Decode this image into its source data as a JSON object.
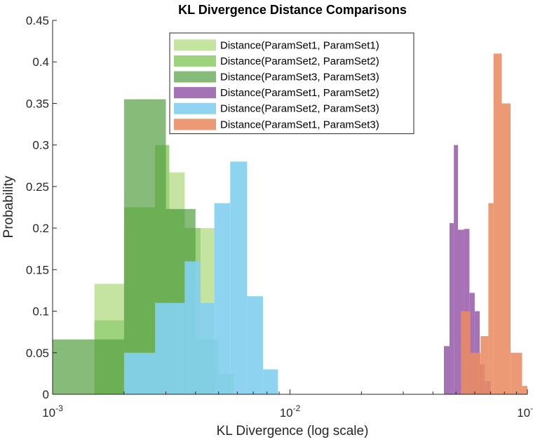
{
  "chart_data": {
    "type": "bar",
    "subtype": "overlaid-histogram",
    "title": "KL Divergence Distance Comparisons",
    "xlabel": "KL Divergence (log scale)",
    "ylabel": "Probability",
    "xscale": "log",
    "xlim": [
      0.001,
      0.1
    ],
    "ylim": [
      0,
      0.45
    ],
    "xticks": [
      {
        "value": 0.001,
        "base": "10",
        "exp": "-3"
      },
      {
        "value": 0.01,
        "base": "10",
        "exp": "-2"
      },
      {
        "value": 0.1,
        "base": "10",
        "exp": "-1"
      }
    ],
    "yticks": [
      "0",
      "0.05",
      "0.1",
      "0.15",
      "0.2",
      "0.25",
      "0.3",
      "0.35",
      "0.4",
      "0.45"
    ],
    "grid": false,
    "legend_position": "top-center",
    "series": [
      {
        "name": "Distance(ParamSet1, ParamSet1)",
        "color": "#c5e3a1",
        "opacity": 1.0,
        "bins": [
          {
            "x0": 0.0015,
            "x1": 0.002,
            "y": 0.133
          },
          {
            "x0": 0.002,
            "x1": 0.0027,
            "y": 0.2
          },
          {
            "x0": 0.0027,
            "x1": 0.0036,
            "y": 0.267
          },
          {
            "x0": 0.0036,
            "x1": 0.0048,
            "y": 0.2
          }
        ]
      },
      {
        "name": "Distance(ParamSet2, ParamSet2)",
        "color": "#9dd37c",
        "opacity": 1.0,
        "bins": [
          {
            "x0": 0.0015,
            "x1": 0.002,
            "y": 0.089
          },
          {
            "x0": 0.002,
            "x1": 0.0027,
            "y": 0.225
          },
          {
            "x0": 0.0027,
            "x1": 0.0031,
            "y": 0.3
          },
          {
            "x0": 0.0031,
            "x1": 0.0036,
            "y": 0.222
          },
          {
            "x0": 0.0036,
            "x1": 0.0042,
            "y": 0.2
          },
          {
            "x0": 0.0042,
            "x1": 0.0048,
            "y": 0.056
          }
        ]
      },
      {
        "name": "Distance(ParamSet3, ParamSet3)",
        "color": "#59a146",
        "opacity": 0.72,
        "bins": [
          {
            "x0": 0.001,
            "x1": 0.0015,
            "y": 0.066
          },
          {
            "x0": 0.0015,
            "x1": 0.002,
            "y": 0.066
          },
          {
            "x0": 0.002,
            "x1": 0.003,
            "y": 0.355
          },
          {
            "x0": 0.003,
            "x1": 0.004,
            "y": 0.223
          },
          {
            "x0": 0.004,
            "x1": 0.005,
            "y": 0.066
          },
          {
            "x0": 0.005,
            "x1": 0.0058,
            "y": 0.024
          }
        ]
      },
      {
        "name": "Distance(ParamSet1, ParamSet2)",
        "color": "#a572b6",
        "opacity": 1.0,
        "bins": [
          {
            "x0": 0.0445,
            "x1": 0.047,
            "y": 0.058
          },
          {
            "x0": 0.047,
            "x1": 0.049,
            "y": 0.206
          },
          {
            "x0": 0.049,
            "x1": 0.051,
            "y": 0.3
          },
          {
            "x0": 0.051,
            "x1": 0.054,
            "y": 0.198
          },
          {
            "x0": 0.054,
            "x1": 0.057,
            "y": 0.199
          },
          {
            "x0": 0.057,
            "x1": 0.06,
            "y": 0.122
          },
          {
            "x0": 0.06,
            "x1": 0.063,
            "y": 0.1
          },
          {
            "x0": 0.063,
            "x1": 0.066,
            "y": 0.036
          },
          {
            "x0": 0.066,
            "x1": 0.07,
            "y": 0.016
          }
        ]
      },
      {
        "name": "Distance(ParamSet2, ParamSet3)",
        "color": "#84d0f0",
        "opacity": 0.92,
        "bins": [
          {
            "x0": 0.002,
            "x1": 0.0027,
            "y": 0.05
          },
          {
            "x0": 0.0027,
            "x1": 0.0036,
            "y": 0.11
          },
          {
            "x0": 0.0036,
            "x1": 0.0042,
            "y": 0.16
          },
          {
            "x0": 0.0042,
            "x1": 0.0048,
            "y": 0.11
          },
          {
            "x0": 0.0048,
            "x1": 0.0056,
            "y": 0.23
          },
          {
            "x0": 0.0056,
            "x1": 0.0066,
            "y": 0.28
          },
          {
            "x0": 0.0066,
            "x1": 0.0077,
            "y": 0.118
          },
          {
            "x0": 0.0077,
            "x1": 0.0089,
            "y": 0.03
          }
        ]
      },
      {
        "name": "Distance(ParamSet1, ParamSet3)",
        "color": "#e98b63",
        "opacity": 0.88,
        "bins": [
          {
            "x0": 0.0525,
            "x1": 0.0575,
            "y": 0.1
          },
          {
            "x0": 0.0575,
            "x1": 0.0635,
            "y": 0.05
          },
          {
            "x0": 0.0635,
            "x1": 0.0685,
            "y": 0.07
          },
          {
            "x0": 0.0685,
            "x1": 0.072,
            "y": 0.23
          },
          {
            "x0": 0.072,
            "x1": 0.078,
            "y": 0.41
          },
          {
            "x0": 0.078,
            "x1": 0.085,
            "y": 0.35
          },
          {
            "x0": 0.085,
            "x1": 0.095,
            "y": 0.05
          },
          {
            "x0": 0.095,
            "x1": 0.108,
            "y": 0.01
          }
        ]
      }
    ]
  }
}
